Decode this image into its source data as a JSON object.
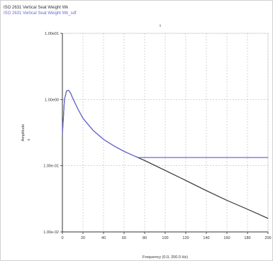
{
  "chart_data": {
    "type": "line",
    "title": "",
    "top_marker": "t",
    "xlabel": "Frequency (0.0, 200.0 Hz)",
    "ylabel": "Amplitude",
    "ylabel_unit": "x",
    "xlim": [
      0,
      200
    ],
    "ylim": [
      0.01,
      10
    ],
    "y_scale": "log",
    "grid": true,
    "x_ticks": [
      0,
      20,
      40,
      60,
      80,
      100,
      120,
      140,
      160,
      180,
      200
    ],
    "x_tick_labels": [
      "0",
      "20",
      "40",
      "60",
      "80",
      "100",
      "120",
      "140",
      "160",
      "180",
      "200"
    ],
    "y_ticks": [
      10,
      1,
      0.1,
      0.01
    ],
    "y_tick_labels": [
      "1.00e01",
      "1.00e00",
      "1.00e-01",
      "1.00e-02"
    ],
    "legend_placement": "top-left",
    "series": [
      {
        "name": "ISO 2631 Vertical Seat Weight Wk",
        "color": "#333333",
        "x": [
          0,
          2,
          4,
          6,
          8,
          10,
          15,
          20,
          30,
          40,
          50,
          60,
          70,
          80,
          100,
          120,
          140,
          160,
          180,
          200
        ],
        "y": [
          0.3,
          1.0,
          1.35,
          1.38,
          1.25,
          1.05,
          0.72,
          0.52,
          0.34,
          0.25,
          0.2,
          0.165,
          0.14,
          0.12,
          0.085,
          0.06,
          0.042,
          0.03,
          0.022,
          0.016
        ]
      },
      {
        "name": "ISO 2631 Vertical Seat Weight Wk_sdf",
        "color": "#6a6ad8",
        "x": [
          0,
          2,
          4,
          6,
          8,
          10,
          15,
          20,
          30,
          40,
          50,
          60,
          70,
          74,
          80,
          100,
          120,
          140,
          160,
          180,
          200
        ],
        "y": [
          0.3,
          1.0,
          1.35,
          1.38,
          1.25,
          1.05,
          0.72,
          0.52,
          0.34,
          0.25,
          0.2,
          0.165,
          0.14,
          0.133,
          0.133,
          0.133,
          0.133,
          0.133,
          0.133,
          0.133,
          0.133
        ]
      }
    ]
  }
}
